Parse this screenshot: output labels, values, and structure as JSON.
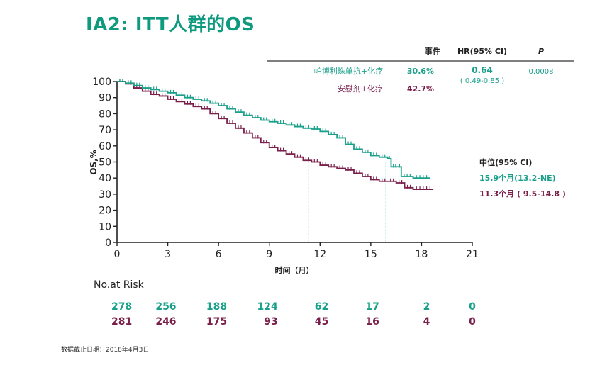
{
  "title": "IA2: ITT人群的OS",
  "table_header": {
    "events": "事件",
    "hr": "HR(95% CI)",
    "p": "P"
  },
  "table_rows": [
    {
      "group": "帕博利珠单抗+化疗",
      "events": "30.6%",
      "hr": "0.64",
      "ci": "( 0.49-0.85 )",
      "p": "0.0008",
      "color": "#1aa08a"
    },
    {
      "group": "安慰剂+化疗",
      "events": "42.7%",
      "hr": "",
      "ci": "",
      "p": "",
      "color": "#7a1f4a"
    }
  ],
  "median": {
    "label": "中位(95% CI)",
    "treatment": "15.9个月(13.2-NE)",
    "control": "11.3个月 ( 9.5-14.8 )"
  },
  "risk_table": {
    "label": "No.at Risk",
    "times": [
      0,
      3,
      6,
      9,
      12,
      15,
      18,
      21
    ],
    "treatment": [
      "278",
      "256",
      "188",
      "124",
      "62",
      "17",
      "2",
      "0"
    ],
    "control": [
      "281",
      "246",
      "175",
      "93",
      "45",
      "16",
      "4",
      "0"
    ]
  },
  "footnote": "数据截止日期：2018年4月3日",
  "chart_data": {
    "type": "line",
    "xlabel": "时间（月）",
    "ylabel": "OS,%",
    "xlim": [
      0,
      21
    ],
    "ylim": [
      0,
      100
    ],
    "xticks": [
      0,
      3,
      6,
      9,
      12,
      15,
      18,
      21
    ],
    "yticks": [
      0,
      10,
      20,
      30,
      40,
      50,
      60,
      70,
      80,
      90,
      100
    ],
    "reference_line_y": 50,
    "series": [
      {
        "name": "帕博利珠单抗+化疗",
        "color": "#1aa08a",
        "median_x": 15.9,
        "points": [
          [
            0,
            100
          ],
          [
            0.5,
            99
          ],
          [
            1,
            97.5
          ],
          [
            1.5,
            96
          ],
          [
            2,
            95
          ],
          [
            2.5,
            94
          ],
          [
            3,
            93
          ],
          [
            3.5,
            91.5
          ],
          [
            4,
            90
          ],
          [
            4.5,
            89
          ],
          [
            5,
            88
          ],
          [
            5.5,
            86.5
          ],
          [
            6,
            85
          ],
          [
            6.5,
            83
          ],
          [
            7,
            81
          ],
          [
            7.5,
            79
          ],
          [
            8,
            77.5
          ],
          [
            8.5,
            76
          ],
          [
            9,
            75
          ],
          [
            9.5,
            74
          ],
          [
            10,
            73
          ],
          [
            10.5,
            72
          ],
          [
            11,
            71
          ],
          [
            11.5,
            70.5
          ],
          [
            12,
            69
          ],
          [
            12.5,
            67
          ],
          [
            13,
            65
          ],
          [
            13.5,
            61
          ],
          [
            14,
            58
          ],
          [
            14.5,
            56
          ],
          [
            15,
            54
          ],
          [
            15.5,
            53
          ],
          [
            16,
            52
          ],
          [
            16.2,
            47
          ],
          [
            16.6,
            47
          ],
          [
            16.8,
            41
          ],
          [
            17.5,
            40
          ],
          [
            18.5,
            40
          ]
        ]
      },
      {
        "name": "安慰剂+化疗",
        "color": "#7a1f4a",
        "median_x": 11.3,
        "points": [
          [
            0,
            100
          ],
          [
            0.5,
            98.5
          ],
          [
            1,
            96
          ],
          [
            1.5,
            94
          ],
          [
            2,
            92
          ],
          [
            2.5,
            91
          ],
          [
            3,
            89
          ],
          [
            3.5,
            87.5
          ],
          [
            4,
            86
          ],
          [
            4.5,
            84.5
          ],
          [
            5,
            83
          ],
          [
            5.5,
            80
          ],
          [
            6,
            77
          ],
          [
            6.5,
            74
          ],
          [
            7,
            71
          ],
          [
            7.5,
            68
          ],
          [
            8,
            65
          ],
          [
            8.5,
            62
          ],
          [
            9,
            59
          ],
          [
            9.5,
            57
          ],
          [
            10,
            55
          ],
          [
            10.5,
            53
          ],
          [
            11,
            51
          ],
          [
            11.5,
            50
          ],
          [
            12,
            48
          ],
          [
            12.5,
            47
          ],
          [
            13,
            46
          ],
          [
            13.5,
            45
          ],
          [
            14,
            43
          ],
          [
            14.5,
            41
          ],
          [
            15,
            39
          ],
          [
            15.5,
            38
          ],
          [
            16,
            38
          ],
          [
            16.5,
            37
          ],
          [
            17,
            34
          ],
          [
            17.5,
            33
          ],
          [
            18.7,
            33
          ]
        ]
      }
    ]
  }
}
